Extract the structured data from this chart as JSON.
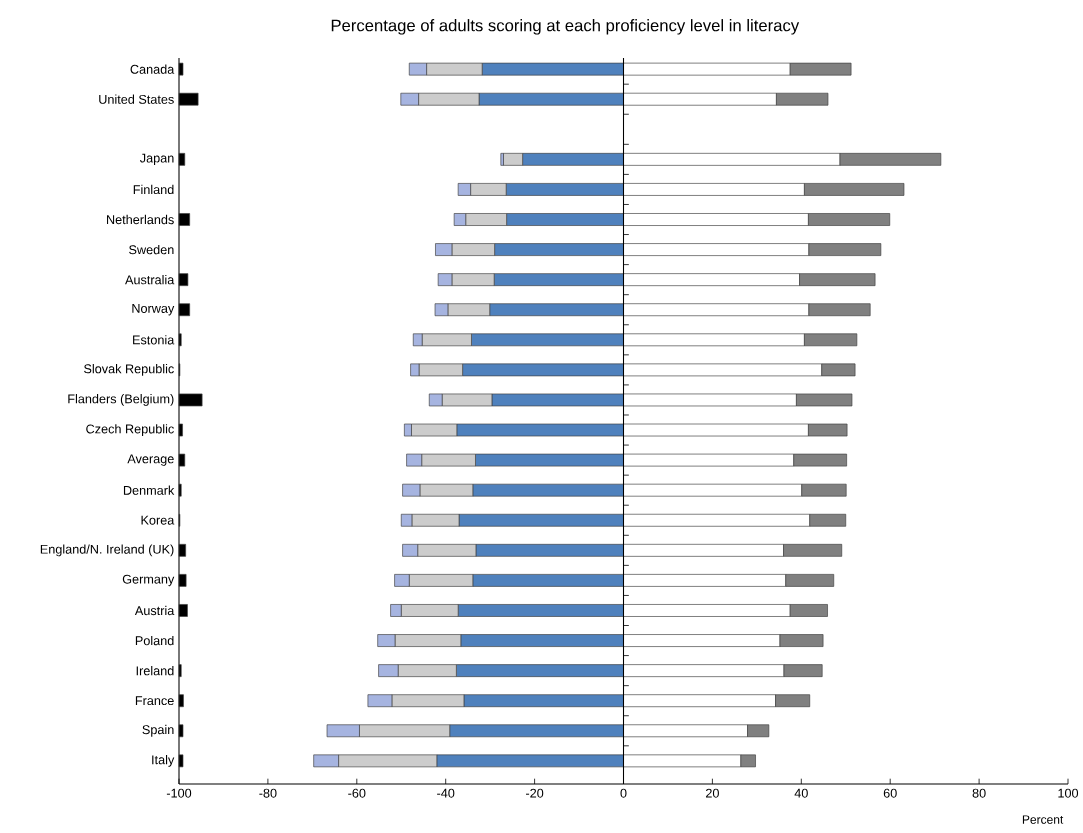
{
  "chart_data": [
    {
      "type": "bar",
      "orientation": "horizontal",
      "stacked": true,
      "title": "Percentage of adults scoring at each proficiency level in literacy",
      "xlabel": "Percent",
      "categories": [
        "Canada",
        "United States",
        null,
        "Japan",
        "Finland",
        "Netherlands",
        "Sweden",
        "Australia",
        "Norway",
        "Estonia",
        "Slovak Republic",
        "Flanders (Belgium)",
        "Czech Republic",
        "Average",
        "Denmark",
        "Korea",
        "England/N. Ireland (UK)",
        "Germany",
        "Austria",
        "Poland",
        "Ireland",
        "France",
        "Spain",
        "Italy"
      ],
      "series": [
        {
          "color": "#4f81bd",
          "values": [
            -31.8,
            -32.5,
            null,
            -22.7,
            -26.4,
            -26.3,
            -29.0,
            -29.1,
            -30.1,
            -34.2,
            -36.2,
            -29.6,
            -37.5,
            -33.3,
            -33.9,
            -37.0,
            -33.2,
            -33.9,
            -37.2,
            -36.6,
            -37.6,
            -35.9,
            -39.1,
            -42.0
          ]
        },
        {
          "color": "#cccccc",
          "values": [
            -12.5,
            -13.6,
            null,
            -4.3,
            -8.0,
            -9.2,
            -9.6,
            -9.5,
            -9.4,
            -11.1,
            -9.8,
            -11.2,
            -10.2,
            -12.1,
            -11.9,
            -10.6,
            -13.1,
            -14.3,
            -12.8,
            -14.8,
            -13.1,
            -16.2,
            -20.3,
            -22.1
          ]
        },
        {
          "color": "#a6b4e0",
          "values": [
            -3.9,
            -4.0,
            null,
            -0.6,
            -2.8,
            -2.6,
            -3.7,
            -3.1,
            -2.9,
            -2.0,
            -1.9,
            -2.9,
            -1.6,
            -3.4,
            -3.9,
            -2.4,
            -3.4,
            -3.3,
            -2.4,
            -3.9,
            -4.4,
            -5.4,
            -7.3,
            -5.6
          ]
        },
        {
          "color": "#ffffff",
          "values": [
            37.5,
            34.4,
            null,
            48.7,
            40.7,
            41.6,
            41.7,
            39.6,
            41.7,
            40.7,
            44.6,
            38.9,
            41.6,
            38.3,
            40.1,
            41.9,
            36.0,
            36.5,
            37.5,
            35.2,
            36.1,
            34.2,
            27.9,
            26.4
          ]
        },
        {
          "color": "#808080",
          "values": [
            13.7,
            11.6,
            null,
            22.7,
            22.4,
            18.3,
            16.2,
            17.0,
            13.8,
            11.8,
            7.5,
            12.5,
            8.7,
            11.9,
            10.0,
            8.1,
            13.1,
            10.8,
            8.4,
            9.7,
            8.6,
            7.7,
            4.8,
            3.3
          ]
        }
      ],
      "xlim": [
        -100,
        100
      ],
      "xticks": [
        -100,
        -80,
        -60,
        -40,
        -20,
        0,
        20,
        40,
        60,
        80,
        100
      ]
    },
    {
      "type": "bar",
      "orientation": "horizontal",
      "tick_labels": false,
      "categories": [
        null,
        null,
        null,
        null,
        null,
        null,
        null,
        null,
        null,
        null,
        null,
        null,
        null,
        null,
        null,
        null,
        null,
        null,
        null,
        null,
        null,
        null,
        null,
        null
      ],
      "color": "#000000",
      "base": [
        -100,
        -100,
        null,
        -100,
        null,
        -100,
        null,
        -100,
        -100,
        -100,
        -100,
        -100,
        -100,
        -100,
        -100,
        -100,
        -100,
        -100,
        -100,
        null,
        -100,
        -100,
        -100,
        -100
      ],
      "values": [
        0.9,
        4.3,
        null,
        1.3,
        null,
        2.4,
        null,
        2.0,
        2.4,
        0.5,
        0.2,
        5.2,
        0.8,
        1.3,
        0.5,
        0.2,
        1.5,
        1.6,
        1.9,
        null,
        0.5,
        1.0,
        0.9,
        0.9
      ],
      "xlim": [
        -100,
        100
      ]
    }
  ]
}
